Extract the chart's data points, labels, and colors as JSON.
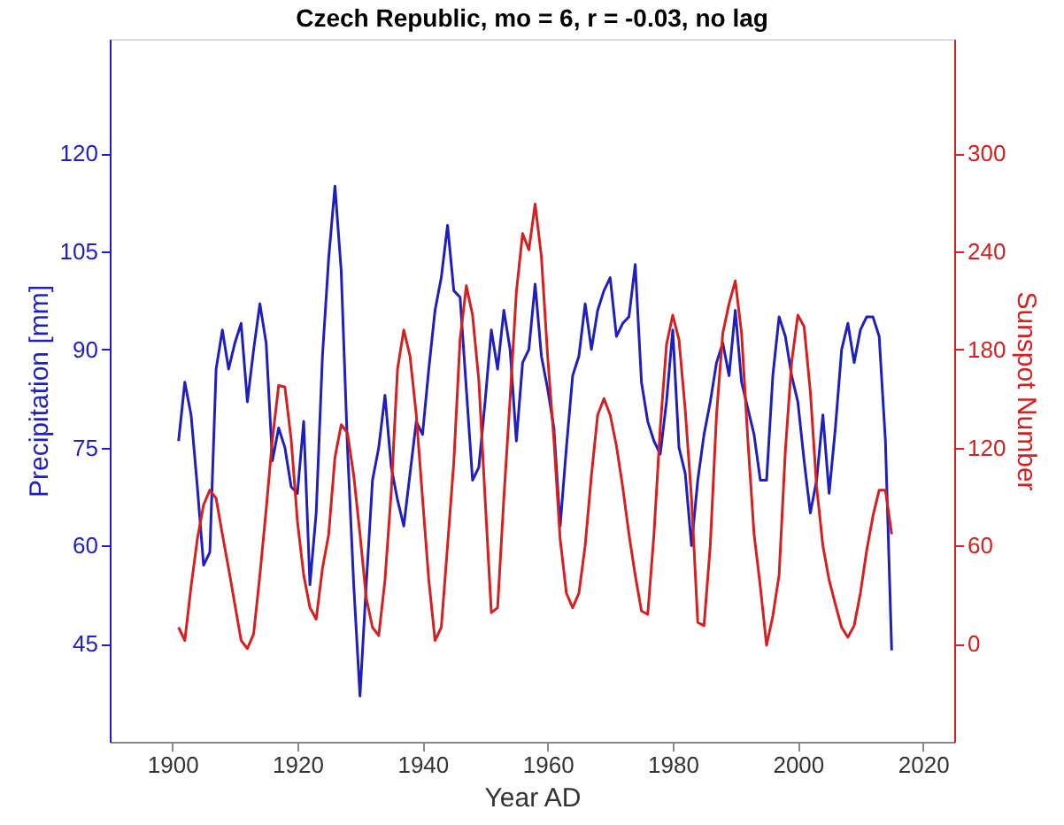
{
  "chart_data": {
    "type": "line",
    "title": "Czech Republic, mo = 6, r = -0.03, no lag",
    "xlabel": "Year AD",
    "ylabel": "Precipitation [mm]",
    "y2label": "Sunspot Number",
    "x": [
      1901,
      1902,
      1903,
      1904,
      1905,
      1906,
      1907,
      1908,
      1909,
      1910,
      1911,
      1912,
      1913,
      1914,
      1915,
      1916,
      1917,
      1918,
      1919,
      1920,
      1921,
      1922,
      1923,
      1924,
      1925,
      1926,
      1927,
      1928,
      1929,
      1930,
      1931,
      1932,
      1933,
      1934,
      1935,
      1936,
      1937,
      1938,
      1939,
      1940,
      1941,
      1942,
      1943,
      1944,
      1945,
      1946,
      1947,
      1948,
      1949,
      1950,
      1951,
      1952,
      1953,
      1954,
      1955,
      1956,
      1957,
      1958,
      1959,
      1960,
      1961,
      1962,
      1963,
      1964,
      1965,
      1966,
      1967,
      1968,
      1969,
      1970,
      1971,
      1972,
      1973,
      1974,
      1975,
      1976,
      1977,
      1978,
      1979,
      1980,
      1981,
      1982,
      1983,
      1984,
      1985,
      1986,
      1987,
      1988,
      1989,
      1990,
      1991,
      1992,
      1993,
      1994,
      1995,
      1996,
      1997,
      1998,
      1999,
      2000,
      2001,
      2002,
      2003,
      2004,
      2005,
      2006,
      2007,
      2008,
      2009,
      2010,
      2011,
      2012,
      2013,
      2014,
      2015
    ],
    "series": [
      {
        "color": "#1f1fbf",
        "values": [
          76,
          85,
          80,
          69,
          57,
          59,
          87,
          93,
          87,
          91,
          94,
          82,
          90,
          97,
          91,
          73,
          78,
          75,
          69,
          68,
          79,
          54,
          65,
          89,
          104,
          115,
          102,
          75,
          54,
          37,
          54,
          70,
          75,
          83,
          72,
          67,
          63,
          71,
          79,
          77,
          87,
          96,
          101,
          109,
          99,
          98,
          84,
          70,
          72,
          82,
          93,
          87,
          96,
          90,
          76,
          88,
          90,
          100,
          89,
          84,
          78,
          63,
          75,
          86,
          89,
          97,
          90,
          96,
          99,
          101,
          92,
          94,
          95,
          103,
          85,
          79,
          76,
          74,
          82,
          93,
          75,
          71,
          60,
          70,
          77,
          82,
          88,
          91,
          86,
          96,
          85,
          81,
          77,
          70,
          70,
          86,
          95,
          92,
          86,
          82,
          73,
          65,
          70,
          80,
          68,
          78,
          90,
          94,
          88,
          93,
          95,
          95,
          92,
          76,
          44
        ]
      },
      {
        "color": "#d62020",
        "axis": "y2",
        "values": [
          10,
          2,
          35,
          64,
          85,
          94,
          89,
          67,
          46,
          24,
          2,
          -3,
          6,
          42,
          82,
          125,
          158,
          157,
          125,
          75,
          42,
          22,
          15,
          46,
          67,
          114,
          134,
          129,
          103,
          67,
          28,
          10,
          5,
          39,
          93,
          168,
          192,
          176,
          140,
          89,
          39,
          2,
          10,
          60,
          111,
          186,
          219,
          201,
          161,
          89,
          19,
          22,
          89,
          150,
          215,
          251,
          241,
          269,
          237,
          176,
          125,
          64,
          31,
          22,
          31,
          60,
          103,
          140,
          150,
          140,
          121,
          96,
          67,
          42,
          20,
          18,
          67,
          132,
          183,
          201,
          186,
          143,
          89,
          13,
          11,
          60,
          140,
          190,
          208,
          222,
          190,
          125,
          67,
          35,
          -1,
          17,
          42,
          118,
          172,
          201,
          194,
          154,
          96,
          60,
          39,
          24,
          10,
          4,
          11,
          31,
          57,
          78,
          94,
          94,
          67
        ]
      }
    ],
    "xlim": [
      1890,
      2025
    ],
    "xticks": [
      1900,
      1920,
      1940,
      1960,
      1980,
      2000,
      2020
    ],
    "ylim": [
      30,
      137.5
    ],
    "yticks": [
      45,
      60,
      75,
      90,
      105,
      120
    ],
    "y2lim": [
      -60,
      370
    ],
    "y2ticks": [
      0,
      60,
      120,
      180,
      240,
      300
    ],
    "grid": false
  }
}
